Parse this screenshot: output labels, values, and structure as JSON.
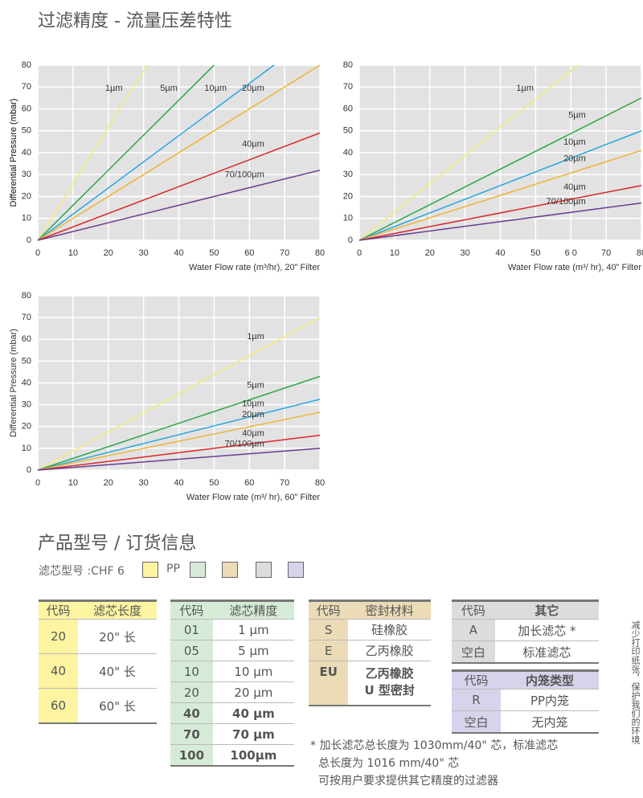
{
  "title": "过滤精度 - 流量压差特性",
  "chart_data": [
    {
      "type": "line",
      "xlabel": "Water Flow rate (m³/hr), 20\" Filter",
      "ylabel": "Differential Pressure (mbar)",
      "xlim": [
        0,
        80
      ],
      "ylim": [
        0,
        80
      ],
      "xticks": [
        0,
        10,
        20,
        30,
        40,
        50,
        60,
        70,
        80
      ],
      "yticks": [
        0,
        10,
        20,
        30,
        40,
        50,
        60,
        70,
        80
      ],
      "grid": true,
      "series": [
        {
          "name": "1µm",
          "color": "#f3ec7c",
          "x": [
            0,
            31
          ],
          "values": [
            0,
            80
          ]
        },
        {
          "name": "5µm",
          "color": "#2aa64a",
          "x": [
            0,
            50
          ],
          "values": [
            0,
            80
          ]
        },
        {
          "name": "10µm",
          "color": "#29a6de",
          "x": [
            0,
            67
          ],
          "values": [
            0,
            80
          ]
        },
        {
          "name": "20µm",
          "color": "#f0b43a",
          "x": [
            0,
            80
          ],
          "values": [
            0,
            80
          ]
        },
        {
          "name": "40µm",
          "color": "#d9262a",
          "x": [
            0,
            80
          ],
          "values": [
            0,
            49
          ]
        },
        {
          "name": "70/100µm",
          "color": "#6b3b92",
          "x": [
            0,
            80
          ],
          "values": [
            0,
            32
          ]
        }
      ]
    },
    {
      "type": "line",
      "xlabel": "Water Flow rate (m³/ hr), 40\" Filter",
      "ylabel": "Differential Pressure (mbar)",
      "xlim": [
        0,
        80
      ],
      "ylim": [
        0,
        80
      ],
      "xticks": [
        0,
        10,
        20,
        30,
        40,
        50,
        {
          "value": 60,
          "label": "6  0"
        },
        70,
        80
      ],
      "yticks": [
        0,
        10,
        20,
        30,
        40,
        50,
        60,
        70,
        80
      ],
      "grid": true,
      "series": [
        {
          "name": "1µm",
          "color": "#f3ec7c",
          "x": [
            0,
            62
          ],
          "values": [
            0,
            80
          ]
        },
        {
          "name": "5µm",
          "color": "#2aa64a",
          "x": [
            0,
            80
          ],
          "values": [
            0,
            65
          ]
        },
        {
          "name": "10µm",
          "color": "#29a6de",
          "x": [
            0,
            80
          ],
          "values": [
            0,
            50
          ]
        },
        {
          "name": "20µm",
          "color": "#f0b43a",
          "x": [
            0,
            80
          ],
          "values": [
            0,
            41
          ]
        },
        {
          "name": "40µm",
          "color": "#d9262a",
          "x": [
            0,
            80
          ],
          "values": [
            0,
            25
          ]
        },
        {
          "name": "70/100µm",
          "color": "#6b3b92",
          "x": [
            0,
            80
          ],
          "values": [
            0,
            17
          ]
        }
      ]
    },
    {
      "type": "line",
      "xlabel": "Water Flow rate (m³/ hr), 60\" Filter",
      "ylabel": "Differential Pressure (mbar)",
      "xlim": [
        0,
        80
      ],
      "ylim": [
        0,
        80
      ],
      "xticks": [
        0,
        10,
        20,
        30,
        40,
        50,
        60,
        70,
        80
      ],
      "yticks": [
        0,
        10,
        20,
        30,
        40,
        50,
        60,
        70,
        80
      ],
      "grid": true,
      "series": [
        {
          "name": "1µm",
          "color": "#f3ec7c",
          "x": [
            0,
            80
          ],
          "values": [
            0,
            70
          ]
        },
        {
          "name": "5µm",
          "color": "#2aa64a",
          "x": [
            0,
            80
          ],
          "values": [
            0,
            43
          ]
        },
        {
          "name": "10µm",
          "color": "#29a6de",
          "x": [
            0,
            80
          ],
          "values": [
            0,
            32.5
          ]
        },
        {
          "name": "20µm",
          "color": "#f0b43a",
          "x": [
            0,
            80
          ],
          "values": [
            0,
            26.5
          ]
        },
        {
          "name": "40µm",
          "color": "#d9262a",
          "x": [
            0,
            80
          ],
          "values": [
            0,
            16
          ]
        },
        {
          "name": "70/100µm",
          "color": "#6b3b92",
          "x": [
            0,
            80
          ],
          "values": [
            0,
            10
          ]
        }
      ]
    }
  ],
  "ordering": {
    "title": "产品型号 / 订货信息",
    "model_label": "滤芯型号 :CHF 6",
    "pp_label": "PP",
    "tables": [
      {
        "header": [
          "代码",
          "滤芯长度"
        ],
        "rows": [
          [
            "20",
            "20\" 长"
          ],
          [
            "40",
            "40\" 长"
          ],
          [
            "60",
            "60\" 长"
          ]
        ]
      },
      {
        "header": [
          "代码",
          "滤芯精度"
        ],
        "rows": [
          [
            "01",
            "1 µm"
          ],
          [
            "05",
            "5 µm"
          ],
          [
            "10",
            "10 µm"
          ],
          [
            "20",
            "20 µm"
          ],
          [
            "40",
            "40 µm"
          ],
          [
            "70",
            "70 µm"
          ],
          [
            "100",
            "100µm"
          ]
        ]
      },
      {
        "header": [
          "代码",
          "密封材料"
        ],
        "rows": [
          [
            "S",
            "硅橡胶"
          ],
          [
            "E",
            "乙丙橡胶"
          ],
          [
            "EU",
            "乙丙橡胶\nU 型密封"
          ]
        ]
      },
      {
        "header": [
          "代码",
          "其它"
        ],
        "rows": [
          [
            "A",
            "加长滤芯 *"
          ],
          [
            "空白",
            "标准滤芯"
          ]
        ]
      },
      {
        "header": [
          "代码",
          "内笼类型"
        ],
        "rows": [
          [
            "R",
            "PP内笼"
          ],
          [
            "空白",
            "无内笼"
          ]
        ]
      }
    ],
    "notes": [
      "* 加长滤芯总长度为 1030mm/40\" 芯，标准滤芯",
      "总长度为 1016 mm/40\" 芯",
      "可按用户要求提供其它精度的过滤器"
    ],
    "side_note": "减少打印纸张，保护我们的环境"
  }
}
